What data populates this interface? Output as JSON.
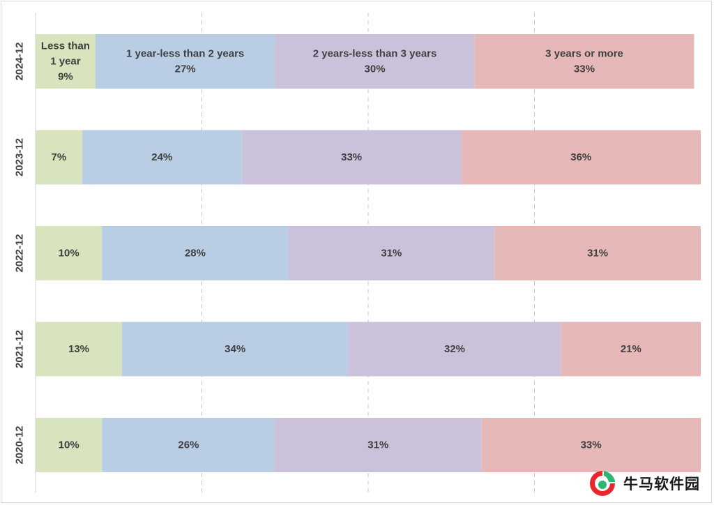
{
  "chart_data": {
    "type": "bar",
    "orientation": "horizontal",
    "stacked": "percent",
    "categories": [
      "2024-12",
      "2023-12",
      "2022-12",
      "2021-12",
      "2020-12"
    ],
    "series": [
      {
        "name": "Less than 1 year",
        "color": "#d7e4bd",
        "values": [
          9,
          7,
          10,
          13,
          10
        ]
      },
      {
        "name": "1 year-less than 2 years",
        "color": "#b9cde5",
        "values": [
          27,
          24,
          28,
          34,
          26
        ]
      },
      {
        "name": "2 years-less than 3 years",
        "color": "#ccc1da",
        "values": [
          30,
          33,
          31,
          32,
          31
        ]
      },
      {
        "name": "3 years or more",
        "color": "#e6b9b8",
        "values": [
          33,
          36,
          31,
          21,
          33
        ]
      }
    ],
    "first_bar_shows_series_names": true,
    "xlim": [
      0,
      100
    ],
    "grid": "vertical dashed",
    "legend": "none"
  },
  "watermark": {
    "text": "牛马软件园",
    "icon": "logo-icon",
    "colors": {
      "red": "#e8262b",
      "green": "#2bb673"
    }
  }
}
